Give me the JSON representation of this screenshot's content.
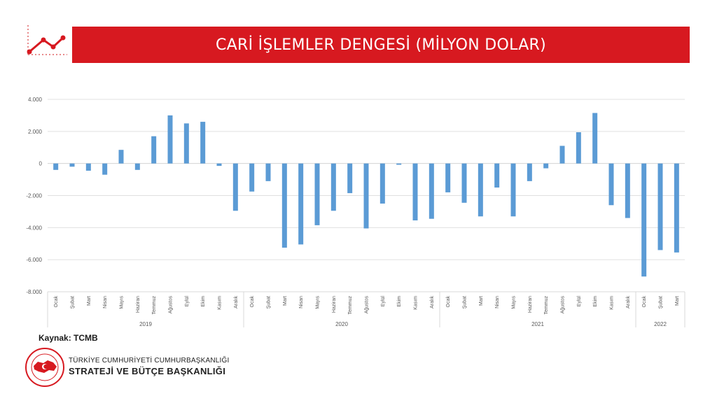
{
  "header": {
    "title": "CARİ İŞLEMLER DENGESİ (MİLYON DOLAR)"
  },
  "source": "Kaynak: TCMB",
  "org": {
    "line1": "TÜRKİYE CUMHURİYETİ CUMHURBAŞKANLIĞI",
    "line2": "STRATEJİ VE BÜTÇE BAŞKANLIĞI"
  },
  "logo_text": "T.C. CUMHURBAŞKANLIĞI STRATEJİ VE BÜTÇE BAŞKANLIĞI",
  "colors": {
    "accent": "#d71920",
    "bar": "#5b9bd5",
    "grid": "#e0e0e0"
  },
  "chart_data": {
    "type": "bar",
    "ylim": [
      -8000,
      4000
    ],
    "yticks": [
      "-8.000",
      "-6.000",
      "-4.000",
      "-2.000",
      "0",
      "2.000",
      "4.000"
    ],
    "ytick_values": [
      -8000,
      -6000,
      -4000,
      -2000,
      0,
      2000,
      4000
    ],
    "grid": true,
    "groups": [
      {
        "year": "2019",
        "months": [
          "Ocak",
          "Şubat",
          "Mart",
          "Nisan",
          "Mayıs",
          "Haziran",
          "Temmuz",
          "Ağustos",
          "Eylül",
          "Ekim",
          "Kasım",
          "Aralık"
        ],
        "values": [
          -400,
          -200,
          -450,
          -700,
          850,
          -400,
          1700,
          3000,
          2500,
          2600,
          -150,
          -2950
        ]
      },
      {
        "year": "2020",
        "months": [
          "Ocak",
          "Şubat",
          "Mart",
          "Nisan",
          "Mayıs",
          "Haziran",
          "Temmuz",
          "Ağustos",
          "Eylül",
          "Ekim",
          "Kasım",
          "Aralık"
        ],
        "values": [
          -1750,
          -1100,
          -5250,
          -5050,
          -3850,
          -2950,
          -1850,
          -4050,
          -2500,
          -80,
          -3550,
          -3450
        ]
      },
      {
        "year": "2021",
        "months": [
          "Ocak",
          "Şubat",
          "Mart",
          "Nisan",
          "Mayıs",
          "Haziran",
          "Temmuz",
          "Ağustos",
          "Eylül",
          "Ekim",
          "Kasım",
          "Aralık"
        ],
        "values": [
          -1800,
          -2450,
          -3300,
          -1500,
          -3300,
          -1100,
          -300,
          1100,
          1950,
          3150,
          -2600,
          -3400
        ]
      },
      {
        "year": "2022",
        "months": [
          "Ocak",
          "Şubat",
          "Mart"
        ],
        "values": [
          -7050,
          -5400,
          -5550
        ]
      }
    ]
  }
}
